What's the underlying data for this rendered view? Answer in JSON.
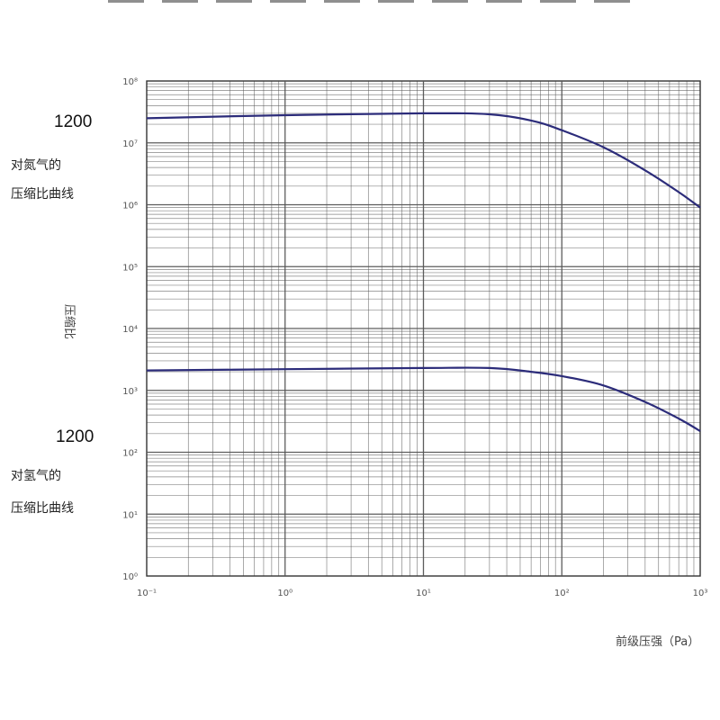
{
  "labels": {
    "upper_model": "1200",
    "upper_desc_line1": "对氮气的",
    "upper_desc_line2": "压缩比曲线",
    "lower_model": "1200",
    "lower_desc_line1": "对氢气的",
    "lower_desc_line2": "压缩比曲线"
  },
  "chart_data": {
    "type": "line",
    "title": "",
    "xlabel": "前级压强（Pa）",
    "ylabel": "压缩比",
    "x_scale": "log",
    "y_scale": "log",
    "xlim": [
      0.1,
      1000
    ],
    "ylim": [
      1,
      100000000.0
    ],
    "x_tick_labels": [
      "10⁻¹",
      "10⁰",
      "10¹",
      "10²",
      "10³"
    ],
    "y_tick_labels": [
      "10⁸",
      "10⁷",
      "10⁶",
      "10⁵",
      "10⁴",
      "10³",
      "10²",
      "10¹",
      "10⁰"
    ],
    "grid": true,
    "line_color": "#2c2c7a",
    "grid_color": "#555555",
    "series": [
      {
        "name": "对氮气的压缩比曲线",
        "x": [
          0.1,
          1,
          10,
          30,
          60,
          100,
          200,
          400,
          700,
          1000
        ],
        "y": [
          25000000.0,
          28000000.0,
          30000000.0,
          29000000.0,
          23000000.0,
          16000000.0,
          8500000.0,
          3600000.0,
          1600000.0,
          900000.0
        ]
      },
      {
        "name": "对氢气的压缩比曲线",
        "x": [
          0.1,
          1,
          10,
          30,
          60,
          100,
          200,
          400,
          700,
          1000
        ],
        "y": [
          2100.0,
          2200.0,
          2300.0,
          2300.0,
          2000.0,
          1700.0,
          1200.0,
          650,
          350,
          220
        ]
      }
    ]
  }
}
